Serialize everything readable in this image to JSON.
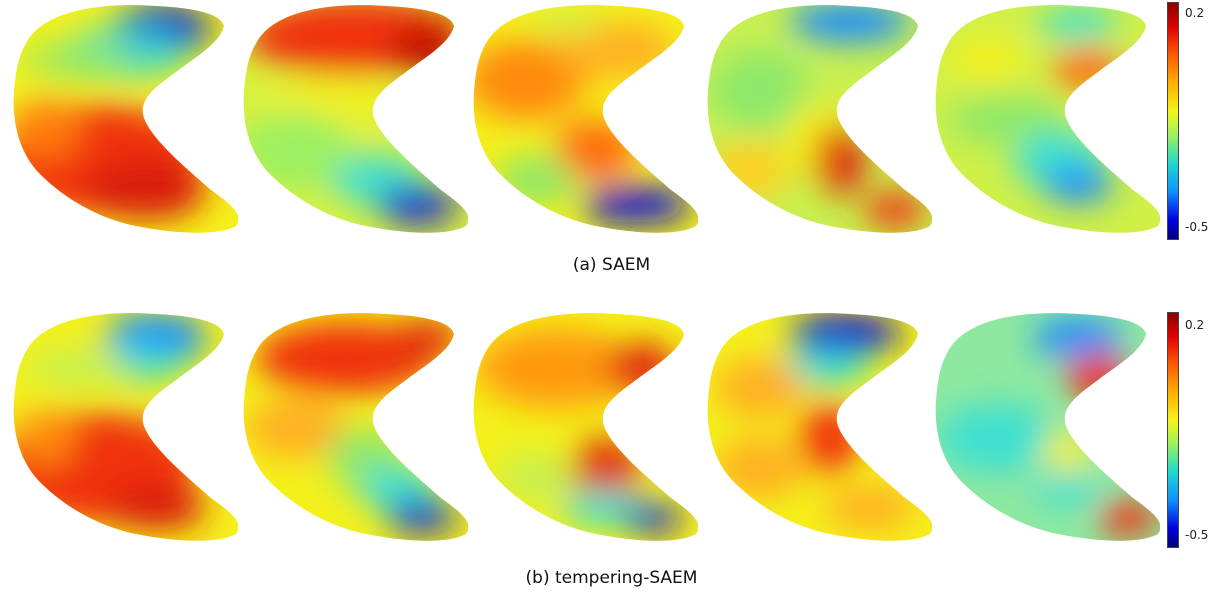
{
  "captions": {
    "a": "(a) SAEM",
    "b": "(b) tempering-SAEM"
  },
  "colorbar": {
    "max_label": "0.2",
    "min_label": "-0.5",
    "colormap": "jet",
    "colors": [
      "#00007f",
      "#0000ff",
      "#00ffff",
      "#ffff00",
      "#ff0000",
      "#7f0000"
    ]
  },
  "palette": {
    "dark_blue": "#0a10d8",
    "blue": "#1a8cff",
    "cyan": "#3fe0d0",
    "green": "#8ee86a",
    "yellow": "#f4f01c",
    "orange": "#ff9a10",
    "red": "#f03010",
    "dark_red": "#c01000"
  }
}
